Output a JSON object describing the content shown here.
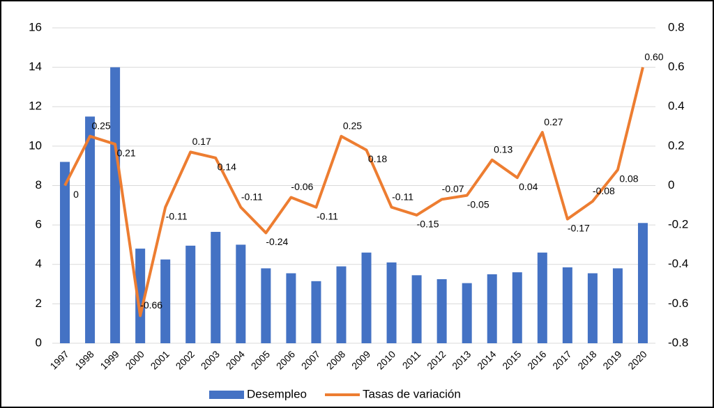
{
  "chart_data": {
    "type": "bar-line",
    "categories": [
      "1997",
      "1998",
      "1999",
      "2000",
      "2001",
      "2002",
      "2003",
      "2004",
      "2005",
      "2006",
      "2007",
      "2008",
      "2009",
      "2010",
      "2011",
      "2012",
      "2013",
      "2014",
      "2015",
      "2016",
      "2017",
      "2018",
      "2019",
      "2020"
    ],
    "series": [
      {
        "name": "Desempleo",
        "type": "bar",
        "color": "#4472c4",
        "values": [
          9.2,
          11.5,
          14.0,
          4.8,
          4.25,
          4.95,
          5.65,
          5.0,
          3.8,
          3.55,
          3.15,
          3.9,
          4.6,
          4.1,
          3.45,
          3.25,
          3.05,
          3.5,
          3.6,
          4.6,
          3.85,
          3.55,
          3.8,
          6.1
        ]
      },
      {
        "name": "Tasas de variación",
        "type": "line",
        "axis": "y2",
        "color": "#ed7d31",
        "values": [
          0,
          0.25,
          0.21,
          -0.66,
          -0.11,
          0.17,
          0.14,
          -0.11,
          -0.24,
          -0.06,
          -0.11,
          0.25,
          0.18,
          -0.11,
          -0.15,
          -0.07,
          -0.05,
          0.13,
          0.04,
          0.27,
          -0.17,
          -0.08,
          0.08,
          0.6
        ],
        "value_labels": [
          "0",
          "0.25",
          "0.21",
          "-0.66",
          "-0.11",
          "0.17",
          "0.14",
          "-0.11",
          "-0.24",
          "-0.06",
          "-0.11",
          "0.25",
          "0.18",
          "-0.11",
          "-0.15",
          "-0.07",
          "-0.05",
          "0.13",
          "0.04",
          "0.27",
          "-0.17",
          "-0.08",
          "0.08",
          "0.60"
        ]
      }
    ],
    "ylim": [
      0,
      16
    ],
    "yticks": [
      0,
      2,
      4,
      6,
      8,
      10,
      12,
      14,
      16
    ],
    "y2lim": [
      -0.8,
      0.8
    ],
    "y2ticks": [
      -0.8,
      -0.6,
      -0.4,
      -0.2,
      0,
      0.2,
      0.4,
      0.6,
      0.8
    ],
    "grid": true,
    "legend": "bottom"
  }
}
